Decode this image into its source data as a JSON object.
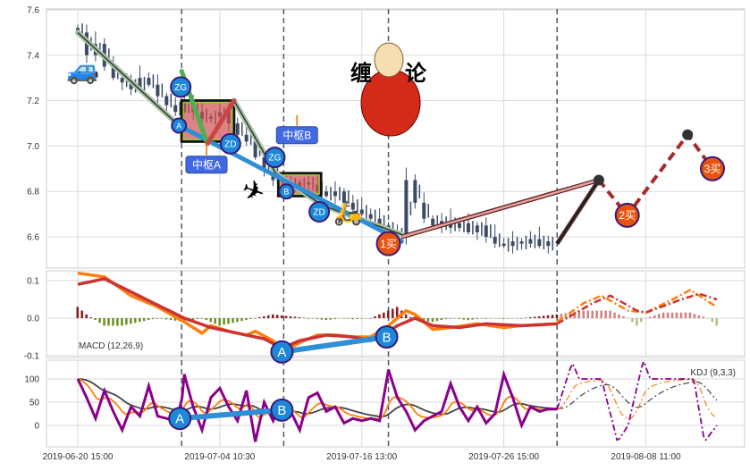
{
  "chart_data": [
    {
      "type": "candlestick",
      "panel": "price",
      "ylim": [
        6.46,
        7.6
      ],
      "yticks": [
        "7.6",
        "7.4",
        "7.2",
        "7.0",
        "6.8",
        "6.6"
      ],
      "ytick_values": [
        7.6,
        7.4,
        7.2,
        7.0,
        6.8,
        6.6
      ],
      "grid": true,
      "closes": [
        7.5,
        7.4,
        7.45,
        7.35,
        7.3,
        7.28,
        7.25,
        7.3,
        7.27,
        7.22,
        7.18,
        7.15,
        7.2,
        7.15,
        7.12,
        7.13,
        7.15,
        7.1,
        7.05,
        7.02,
        6.95,
        6.9,
        6.85,
        6.84,
        6.82,
        6.84,
        6.83,
        6.8,
        6.78,
        6.8,
        6.75,
        6.72,
        6.7,
        6.68,
        6.65,
        6.62,
        6.6,
        6.85,
        6.75,
        6.68,
        6.65,
        6.67,
        6.64,
        6.66,
        6.62,
        6.65,
        6.6,
        6.57,
        6.56,
        6.58,
        6.57,
        6.59,
        6.56,
        6.58
      ],
      "candle_color": "#3c4a63",
      "trend_lines": [
        {
          "points": [
            [
              0,
              7.5
            ],
            [
              11.4,
              7.09
            ]
          ],
          "color": "#2d3a2d"
        },
        {
          "points": [
            [
              17.6,
              7.2
            ],
            [
              22.3,
              6.88
            ],
            [
              27.5,
              6.74
            ],
            [
              36.5,
              6.61
            ]
          ],
          "color": "#2d3a2d"
        }
      ],
      "stroke_lines": [
        {
          "points": [
            [
              11.4,
              7.09
            ],
            [
              36.5,
              6.58
            ]
          ],
          "color": "#2e8fd6"
        },
        {
          "points": [
            [
              11.7,
              7.33
            ],
            [
              14.6,
              7.01
            ]
          ],
          "color": "#4caf50"
        },
        {
          "points": [
            [
              14.6,
              7.01
            ],
            [
              17.6,
              7.2
            ]
          ],
          "color": "#cc4444"
        }
      ],
      "pivot_boxes": [
        {
          "name": "中枢A",
          "i0": 11.7,
          "i1": 17.6,
          "low": 7.02,
          "high": 7.2
        },
        {
          "name": "中枢B",
          "i0": 22.6,
          "i1": 27.4,
          "low": 6.78,
          "high": 6.88
        }
      ],
      "forecast_support_line": {
        "points": [
          [
            36.5,
            6.6
          ],
          [
            58.7,
            6.85
          ]
        ],
        "color": "#b06060"
      },
      "forecast_black_line": {
        "points": [
          [
            54,
            6.57
          ],
          [
            58.7,
            6.85
          ]
        ],
        "color": "#222222"
      },
      "forecast_dashed": {
        "points": [
          [
            58.7,
            6.85
          ],
          [
            61.9,
            6.695
          ],
          [
            68.7,
            7.05
          ],
          [
            71.5,
            6.9
          ]
        ],
        "color": "#a52a2a"
      },
      "markers": [
        {
          "label": "ZG",
          "i": 11.6,
          "v": 7.26
        },
        {
          "label": "A",
          "i": 11.4,
          "v": 7.09,
          "small": true
        },
        {
          "label": "ZD",
          "i": 17.2,
          "v": 7.01
        },
        {
          "label": "ZG",
          "i": 22.2,
          "v": 6.95
        },
        {
          "label": "B",
          "i": 23.5,
          "v": 6.8,
          "small": true
        },
        {
          "label": "ZD",
          "i": 27.2,
          "v": 6.71
        }
      ],
      "buy_points": [
        {
          "label": "1买",
          "i": 35,
          "v": 6.57
        },
        {
          "label": "2买",
          "i": 61.9,
          "v": 6.695
        },
        {
          "label": "3买",
          "i": 71.5,
          "v": 6.9
        }
      ],
      "forecast_nodes": [
        {
          "i": 58.7,
          "v": 6.85
        },
        {
          "i": 68.7,
          "v": 7.05
        }
      ],
      "pivot_labels": [
        {
          "text": "中枢A",
          "i": 14.5,
          "v": 6.92
        },
        {
          "text": "中枢B",
          "i": 24.7,
          "v": 7.05
        }
      ],
      "title_chars": [
        "缠",
        "论"
      ]
    },
    {
      "type": "line",
      "panel": "macd",
      "label": "MACD (12,26,9)",
      "ylim": [
        -0.1,
        0.13
      ],
      "yticks": [
        "0.1",
        "0.0",
        "-0.1"
      ],
      "ytick_values": [
        0.1,
        0.0,
        -0.1
      ],
      "dif": [
        [
          0,
          0.12
        ],
        [
          3,
          0.11
        ],
        [
          6,
          0.06
        ],
        [
          9,
          0.03
        ],
        [
          12,
          -0.01
        ],
        [
          14,
          -0.04
        ],
        [
          15,
          -0.02
        ],
        [
          17,
          -0.035
        ],
        [
          19,
          -0.045
        ],
        [
          20,
          -0.035
        ],
        [
          22,
          -0.06
        ],
        [
          23,
          -0.09
        ],
        [
          25,
          -0.065
        ],
        [
          27,
          -0.045
        ],
        [
          29,
          -0.045
        ],
        [
          31,
          -0.05
        ],
        [
          33,
          -0.05
        ],
        [
          35,
          -0.02
        ],
        [
          37,
          0.02
        ],
        [
          38,
          0.01
        ],
        [
          40,
          -0.03
        ],
        [
          42,
          -0.025
        ],
        [
          45,
          -0.015
        ],
        [
          48,
          -0.025
        ],
        [
          50,
          -0.02
        ],
        [
          54,
          -0.015
        ]
      ],
      "dea": [
        [
          0,
          0.09
        ],
        [
          3,
          0.105
        ],
        [
          6,
          0.07
        ],
        [
          9,
          0.035
        ],
        [
          12,
          0.0
        ],
        [
          15,
          -0.025
        ],
        [
          18,
          -0.04
        ],
        [
          21,
          -0.055
        ],
        [
          23,
          -0.08
        ],
        [
          25,
          -0.06
        ],
        [
          28,
          -0.045
        ],
        [
          31,
          -0.05
        ],
        [
          33,
          -0.06
        ],
        [
          34,
          -0.05
        ],
        [
          36,
          -0.02
        ],
        [
          38,
          0.0
        ],
        [
          40,
          -0.02
        ],
        [
          43,
          -0.025
        ],
        [
          46,
          -0.015
        ],
        [
          50,
          -0.02
        ],
        [
          54,
          -0.015
        ]
      ],
      "dif_forecast": [
        [
          54,
          -0.01
        ],
        [
          57,
          0.04
        ],
        [
          59,
          0.06
        ],
        [
          62,
          0.02
        ],
        [
          64,
          0.015
        ],
        [
          67,
          0.05
        ],
        [
          69,
          0.075
        ],
        [
          72,
          0.03
        ]
      ],
      "dea_forecast": [
        [
          54,
          -0.015
        ],
        [
          58,
          0.04
        ],
        [
          60,
          0.06
        ],
        [
          63,
          0.02
        ],
        [
          64,
          0.015
        ],
        [
          68,
          0.05
        ],
        [
          70,
          0.065
        ],
        [
          72,
          0.05
        ]
      ],
      "histogram": [
        [
          0,
          0.03
        ],
        [
          1,
          0.01
        ],
        [
          3,
          -0.02
        ],
        [
          5,
          -0.02
        ],
        [
          7,
          -0.01
        ],
        [
          9,
          0
        ],
        [
          12,
          -0.01
        ],
        [
          14,
          0
        ],
        [
          16,
          -0.02
        ],
        [
          18,
          -0.01
        ],
        [
          20,
          0
        ],
        [
          22,
          0.01
        ],
        [
          24,
          0.005
        ],
        [
          26,
          0
        ],
        [
          28,
          -0.005
        ],
        [
          30,
          0
        ],
        [
          31,
          -0.003
        ],
        [
          33,
          0
        ],
        [
          36,
          0.03
        ],
        [
          37,
          0.01
        ],
        [
          38,
          -0.005
        ],
        [
          40,
          -0.01
        ],
        [
          42,
          0
        ],
        [
          44,
          -0.005
        ],
        [
          46,
          0
        ],
        [
          48,
          -0.002
        ],
        [
          50,
          0
        ],
        [
          54,
          0.01
        ],
        [
          57,
          0.02
        ],
        [
          60,
          0.02
        ],
        [
          62,
          0
        ],
        [
          63,
          -0.02
        ],
        [
          64,
          0
        ],
        [
          66,
          0.015
        ],
        [
          69,
          0.015
        ],
        [
          71,
          0
        ],
        [
          72,
          -0.02
        ]
      ],
      "markers": [
        {
          "label": "A",
          "i": 23,
          "v": -0.09
        },
        {
          "label": "B",
          "i": 34.8,
          "v": -0.05
        }
      ],
      "colors": {
        "dif": "#ff7f0e",
        "dea": "#cc3333",
        "hist_pos": "#8b1a1a",
        "hist_neg": "#6b8e23",
        "link": "#2e8fd6"
      }
    },
    {
      "type": "line",
      "panel": "kdj",
      "label": "KDJ (9,3,3)",
      "ylim": [
        -45,
        145
      ],
      "yticks": [
        "100",
        "50",
        "0"
      ],
      "ytick_values": [
        100,
        50,
        0
      ],
      "j": [
        [
          0,
          100
        ],
        [
          1,
          60
        ],
        [
          2,
          15
        ],
        [
          3,
          75
        ],
        [
          4,
          30
        ],
        [
          5,
          -10
        ],
        [
          6,
          40
        ],
        [
          7,
          20
        ],
        [
          8,
          85
        ],
        [
          9,
          20
        ],
        [
          10,
          15
        ],
        [
          11,
          10
        ],
        [
          11.7,
          50
        ],
        [
          12,
          110
        ],
        [
          13,
          40
        ],
        [
          14,
          -10
        ],
        [
          15,
          60
        ],
        [
          16,
          80
        ],
        [
          17,
          40
        ],
        [
          18,
          10
        ],
        [
          19,
          75
        ],
        [
          20,
          -35
        ],
        [
          21,
          50
        ],
        [
          22,
          10
        ],
        [
          23,
          50
        ],
        [
          24,
          30
        ],
        [
          25,
          -10
        ],
        [
          26,
          60
        ],
        [
          27,
          70
        ],
        [
          28,
          30
        ],
        [
          29,
          40
        ],
        [
          30,
          5
        ],
        [
          31,
          15
        ],
        [
          32,
          10
        ],
        [
          33,
          15
        ],
        [
          34,
          10
        ],
        [
          35,
          120
        ],
        [
          36,
          60
        ],
        [
          37,
          30
        ],
        [
          38,
          -10
        ],
        [
          39,
          10
        ],
        [
          40,
          20
        ],
        [
          41,
          30
        ],
        [
          42,
          90
        ],
        [
          43,
          40
        ],
        [
          44,
          10
        ],
        [
          45,
          40
        ],
        [
          46,
          5
        ],
        [
          47,
          25
        ],
        [
          48,
          110
        ],
        [
          49,
          60
        ],
        [
          50,
          0
        ],
        [
          51,
          40
        ],
        [
          52,
          30
        ],
        [
          53,
          35
        ],
        [
          54,
          35
        ]
      ],
      "j_forecast": [
        [
          54,
          35
        ],
        [
          55.7,
          135
        ],
        [
          56.5,
          100
        ],
        [
          59,
          100
        ],
        [
          60.8,
          -35
        ],
        [
          62,
          0
        ],
        [
          63.7,
          140
        ],
        [
          64.5,
          100
        ],
        [
          69.4,
          100
        ],
        [
          70.6,
          -35
        ],
        [
          72,
          0
        ]
      ],
      "markers": [
        {
          "label": "A",
          "i": 11.5,
          "v": 15
        },
        {
          "label": "B",
          "i": 23,
          "v": 33
        }
      ],
      "colors": {
        "k": "#ff7f0e",
        "d": "#444444",
        "j": "#8b008b"
      }
    }
  ],
  "x_axis": {
    "tick_labels": [
      "2019-06-20 15:00",
      "2019-07-04 10:30",
      "2019-07-16 13:00",
      "2019-07-26 15:00",
      "2019-08-08 11:00"
    ],
    "tick_index": [
      0,
      16,
      32,
      48,
      64
    ],
    "dashed_lines_index": [
      11.7,
      23.2,
      35,
      54
    ]
  }
}
